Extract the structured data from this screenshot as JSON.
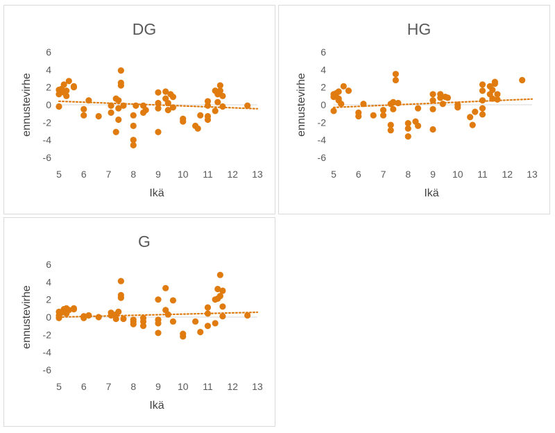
{
  "chart_data": [
    {
      "type": "scatter",
      "title": "DG",
      "xlabel": "Ikä",
      "ylabel": "ennustevirhe",
      "xlim": [
        5,
        13
      ],
      "ylim": [
        -6,
        6
      ],
      "xticks": [
        "5",
        "6",
        "7",
        "8",
        "9",
        "10",
        "11",
        "12",
        "13"
      ],
      "yticks": [
        "6",
        "4",
        "2",
        "0",
        "-2",
        "-4",
        "-6"
      ],
      "trendline": {
        "type": "linear",
        "x": [
          5,
          13
        ],
        "y": [
          0.4,
          -0.45
        ],
        "style": "dotted"
      },
      "grid": false,
      "series": [
        {
          "name": "ennustevirhe",
          "color": "#E07B0F",
          "x": [
            5.0,
            5.0,
            5.0,
            5.1,
            5.2,
            5.2,
            5.3,
            5.3,
            5.4,
            5.6,
            5.6,
            6.0,
            6.0,
            6.2,
            6.6,
            7.1,
            7.1,
            7.3,
            7.3,
            7.4,
            7.4,
            7.4,
            7.5,
            7.5,
            7.5,
            7.6,
            8.0,
            8.0,
            8.0,
            8.0,
            8.1,
            8.4,
            8.4,
            8.5,
            9.0,
            9.0,
            9.0,
            9.0,
            9.3,
            9.3,
            9.4,
            9.4,
            9.5,
            9.6,
            9.6,
            10.0,
            10.0,
            10.5,
            10.6,
            10.7,
            11.0,
            11.0,
            11.0,
            11.0,
            11.3,
            11.3,
            11.4,
            11.4,
            11.5,
            11.5,
            11.6,
            11.6,
            12.6
          ],
          "y": [
            1.7,
            1.2,
            -0.2,
            1.8,
            2.3,
            1.4,
            1.0,
            1.6,
            2.7,
            2.1,
            2.0,
            -0.5,
            -1.2,
            0.5,
            -1.3,
            -0.1,
            -0.9,
            -3.1,
            0.7,
            -1.7,
            0.5,
            -0.4,
            3.9,
            2.5,
            2.2,
            -0.1,
            -4.0,
            -4.6,
            -2.4,
            -1.2,
            -0.1,
            -0.9,
            -0.1,
            -0.6,
            1.4,
            0.2,
            -0.4,
            -3.1,
            1.5,
            0.7,
            0.2,
            -0.6,
            1.2,
            0.9,
            -0.3,
            -1.6,
            -1.9,
            -2.4,
            -2.7,
            -1.2,
            0.4,
            -0.1,
            -1.3,
            -1.7,
            1.6,
            -0.7,
            1.2,
            0.3,
            1.6,
            2.2,
            -0.2,
            1.0,
            -0.1
          ]
        }
      ]
    },
    {
      "type": "scatter",
      "title": "HG",
      "xlabel": "Ikä",
      "ylabel": "ennustevirhe",
      "xlim": [
        5,
        13
      ],
      "ylim": [
        -6,
        6
      ],
      "xticks": [
        "5",
        "6",
        "7",
        "8",
        "9",
        "10",
        "11",
        "12",
        "13"
      ],
      "yticks": [
        "6",
        "4",
        "2",
        "0",
        "-2",
        "-4",
        "-6"
      ],
      "trendline": {
        "type": "linear",
        "x": [
          5,
          13
        ],
        "y": [
          -0.3,
          0.65
        ],
        "style": "dotted"
      },
      "grid": false,
      "series": [
        {
          "name": "ennustevirhe",
          "color": "#E07B0F",
          "x": [
            5.0,
            5.0,
            5.0,
            5.1,
            5.2,
            5.2,
            5.2,
            5.3,
            5.4,
            5.6,
            6.0,
            6.0,
            6.2,
            6.6,
            7.0,
            7.0,
            7.3,
            7.3,
            7.3,
            7.4,
            7.4,
            7.5,
            7.5,
            7.6,
            8.0,
            8.0,
            8.0,
            8.3,
            8.4,
            8.4,
            9.0,
            9.0,
            9.0,
            9.0,
            9.3,
            9.3,
            9.4,
            9.5,
            9.6,
            10.0,
            10.0,
            10.5,
            10.6,
            10.7,
            11.0,
            11.0,
            11.0,
            11.0,
            11.0,
            11.3,
            11.3,
            11.4,
            11.4,
            11.5,
            11.5,
            11.6,
            11.6,
            12.6
          ],
          "y": [
            1.2,
            0.9,
            -0.7,
            1.3,
            1.5,
            0.7,
            0.5,
            0.1,
            2.1,
            1.6,
            -0.9,
            -1.3,
            0.1,
            -1.2,
            -0.6,
            -1.2,
            -2.3,
            -2.9,
            0.1,
            0.3,
            -0.5,
            3.5,
            2.8,
            0.2,
            -2.1,
            -2.7,
            -3.6,
            -1.9,
            -2.4,
            -0.4,
            1.2,
            -0.5,
            0.5,
            -2.8,
            1.2,
            0.8,
            0.1,
            0.9,
            0.8,
            -0.3,
            0.0,
            -1.4,
            -2.3,
            -0.8,
            2.3,
            1.6,
            0.5,
            -0.4,
            -1.1,
            2.1,
            1.2,
            0.7,
            1.7,
            2.6,
            2.4,
            1.2,
            0.6,
            2.8
          ]
        }
      ]
    },
    {
      "type": "scatter",
      "title": "G",
      "xlabel": "Ikä",
      "ylabel": "ennustevirhe",
      "xlim": [
        5,
        13
      ],
      "ylim": [
        -6,
        6
      ],
      "xticks": [
        "5",
        "6",
        "7",
        "8",
        "9",
        "10",
        "11",
        "12",
        "13"
      ],
      "yticks": [
        "6",
        "4",
        "2",
        "0",
        "-2",
        "-4",
        "-6"
      ],
      "trendline": {
        "type": "linear",
        "x": [
          5,
          13
        ],
        "y": [
          0.0,
          0.55
        ],
        "style": "dotted"
      },
      "grid": false,
      "series": [
        {
          "name": "ennustevirhe",
          "color": "#E07B0F",
          "x": [
            5.0,
            5.0,
            5.0,
            5.1,
            5.2,
            5.2,
            5.3,
            5.3,
            5.4,
            5.6,
            5.6,
            6.0,
            6.0,
            6.2,
            6.6,
            7.1,
            7.1,
            7.3,
            7.3,
            7.4,
            7.5,
            7.5,
            7.5,
            7.6,
            8.0,
            8.0,
            8.0,
            8.4,
            8.4,
            8.4,
            9.0,
            9.0,
            9.0,
            9.0,
            9.3,
            9.3,
            9.4,
            9.6,
            9.6,
            10.0,
            10.0,
            10.5,
            10.7,
            11.0,
            11.0,
            11.0,
            11.3,
            11.3,
            11.4,
            11.4,
            11.5,
            11.5,
            11.6,
            11.6,
            11.6,
            12.6
          ],
          "y": [
            0.6,
            0.2,
            -0.1,
            0.5,
            0.9,
            0.6,
            1.0,
            0.4,
            0.8,
            1.0,
            0.9,
            0.1,
            -0.1,
            0.2,
            0.0,
            0.2,
            0.5,
            -0.2,
            0.3,
            0.6,
            4.1,
            2.5,
            2.2,
            -0.2,
            -0.5,
            -0.8,
            -0.3,
            -0.1,
            -0.5,
            -1.0,
            2.0,
            -0.3,
            -0.7,
            -1.8,
            3.3,
            0.8,
            0.3,
            1.9,
            -0.5,
            -1.9,
            -2.2,
            -0.5,
            -1.7,
            0.4,
            1.1,
            -1.0,
            2.0,
            -0.7,
            2.1,
            3.2,
            2.4,
            4.8,
            1.2,
            0.1,
            3.0,
            0.2
          ]
        }
      ]
    }
  ]
}
